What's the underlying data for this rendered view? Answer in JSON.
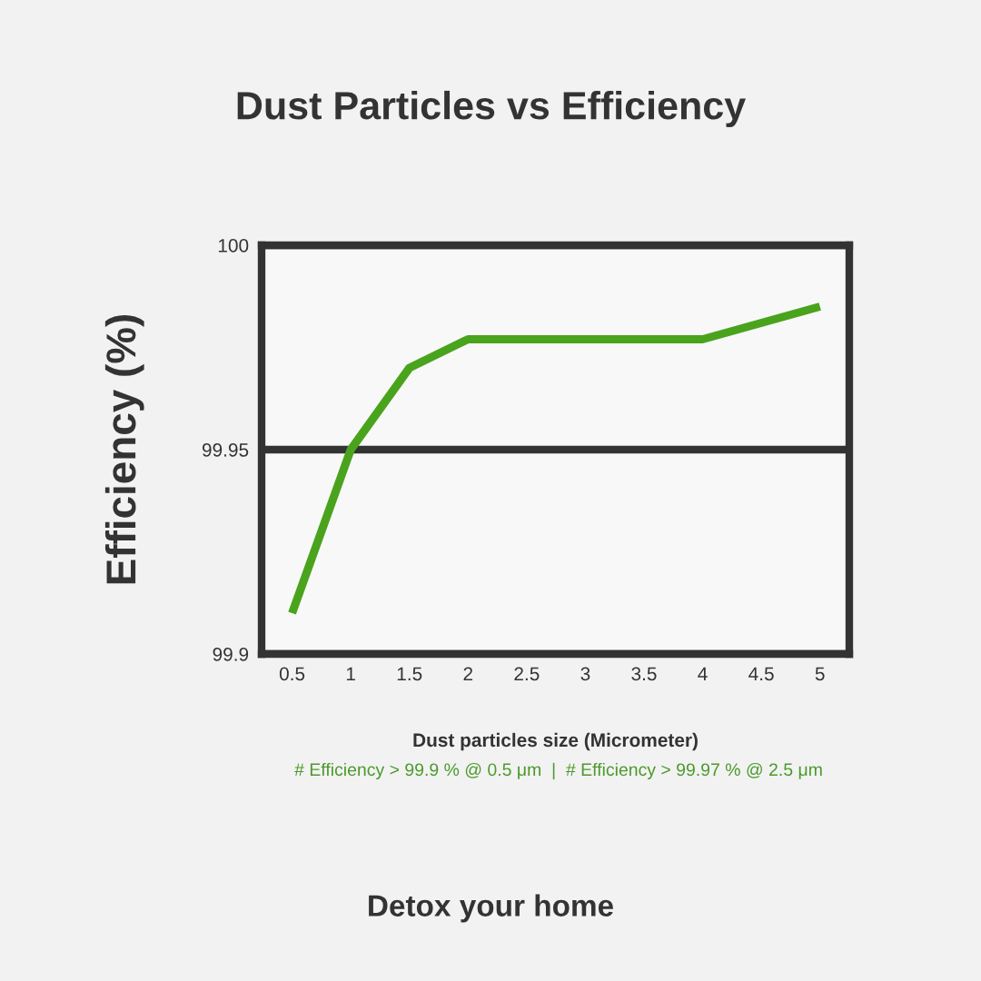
{
  "chart_data": {
    "type": "line",
    "title": "Dust Particles vs Efficiency",
    "xlabel": "Dust particles size (Micrometer)",
    "ylabel": "Efficiency (%)",
    "series": [
      {
        "color": "#4aa31c",
        "x": [
          0.5,
          1,
          1.5,
          2,
          4,
          5
        ],
        "values": [
          99.91,
          99.95,
          99.97,
          99.977,
          99.977,
          99.985
        ]
      }
    ],
    "xlim": [
      0.24,
      5.25
    ],
    "xticks": [
      0.5,
      1,
      1.5,
      2,
      2.5,
      3,
      3.5,
      4,
      4.5,
      5
    ],
    "ylim": [
      99.9,
      100
    ],
    "yticks": [
      99.9,
      99.95,
      100
    ],
    "grid": "y",
    "marker": "none",
    "line_style": "solid",
    "annotations": [
      "# Efficiency > 99.9 % @ 0.5 μm  |  # Efficiency > 99.97 % @ 2.5 μm",
      "Detox your home"
    ]
  }
}
